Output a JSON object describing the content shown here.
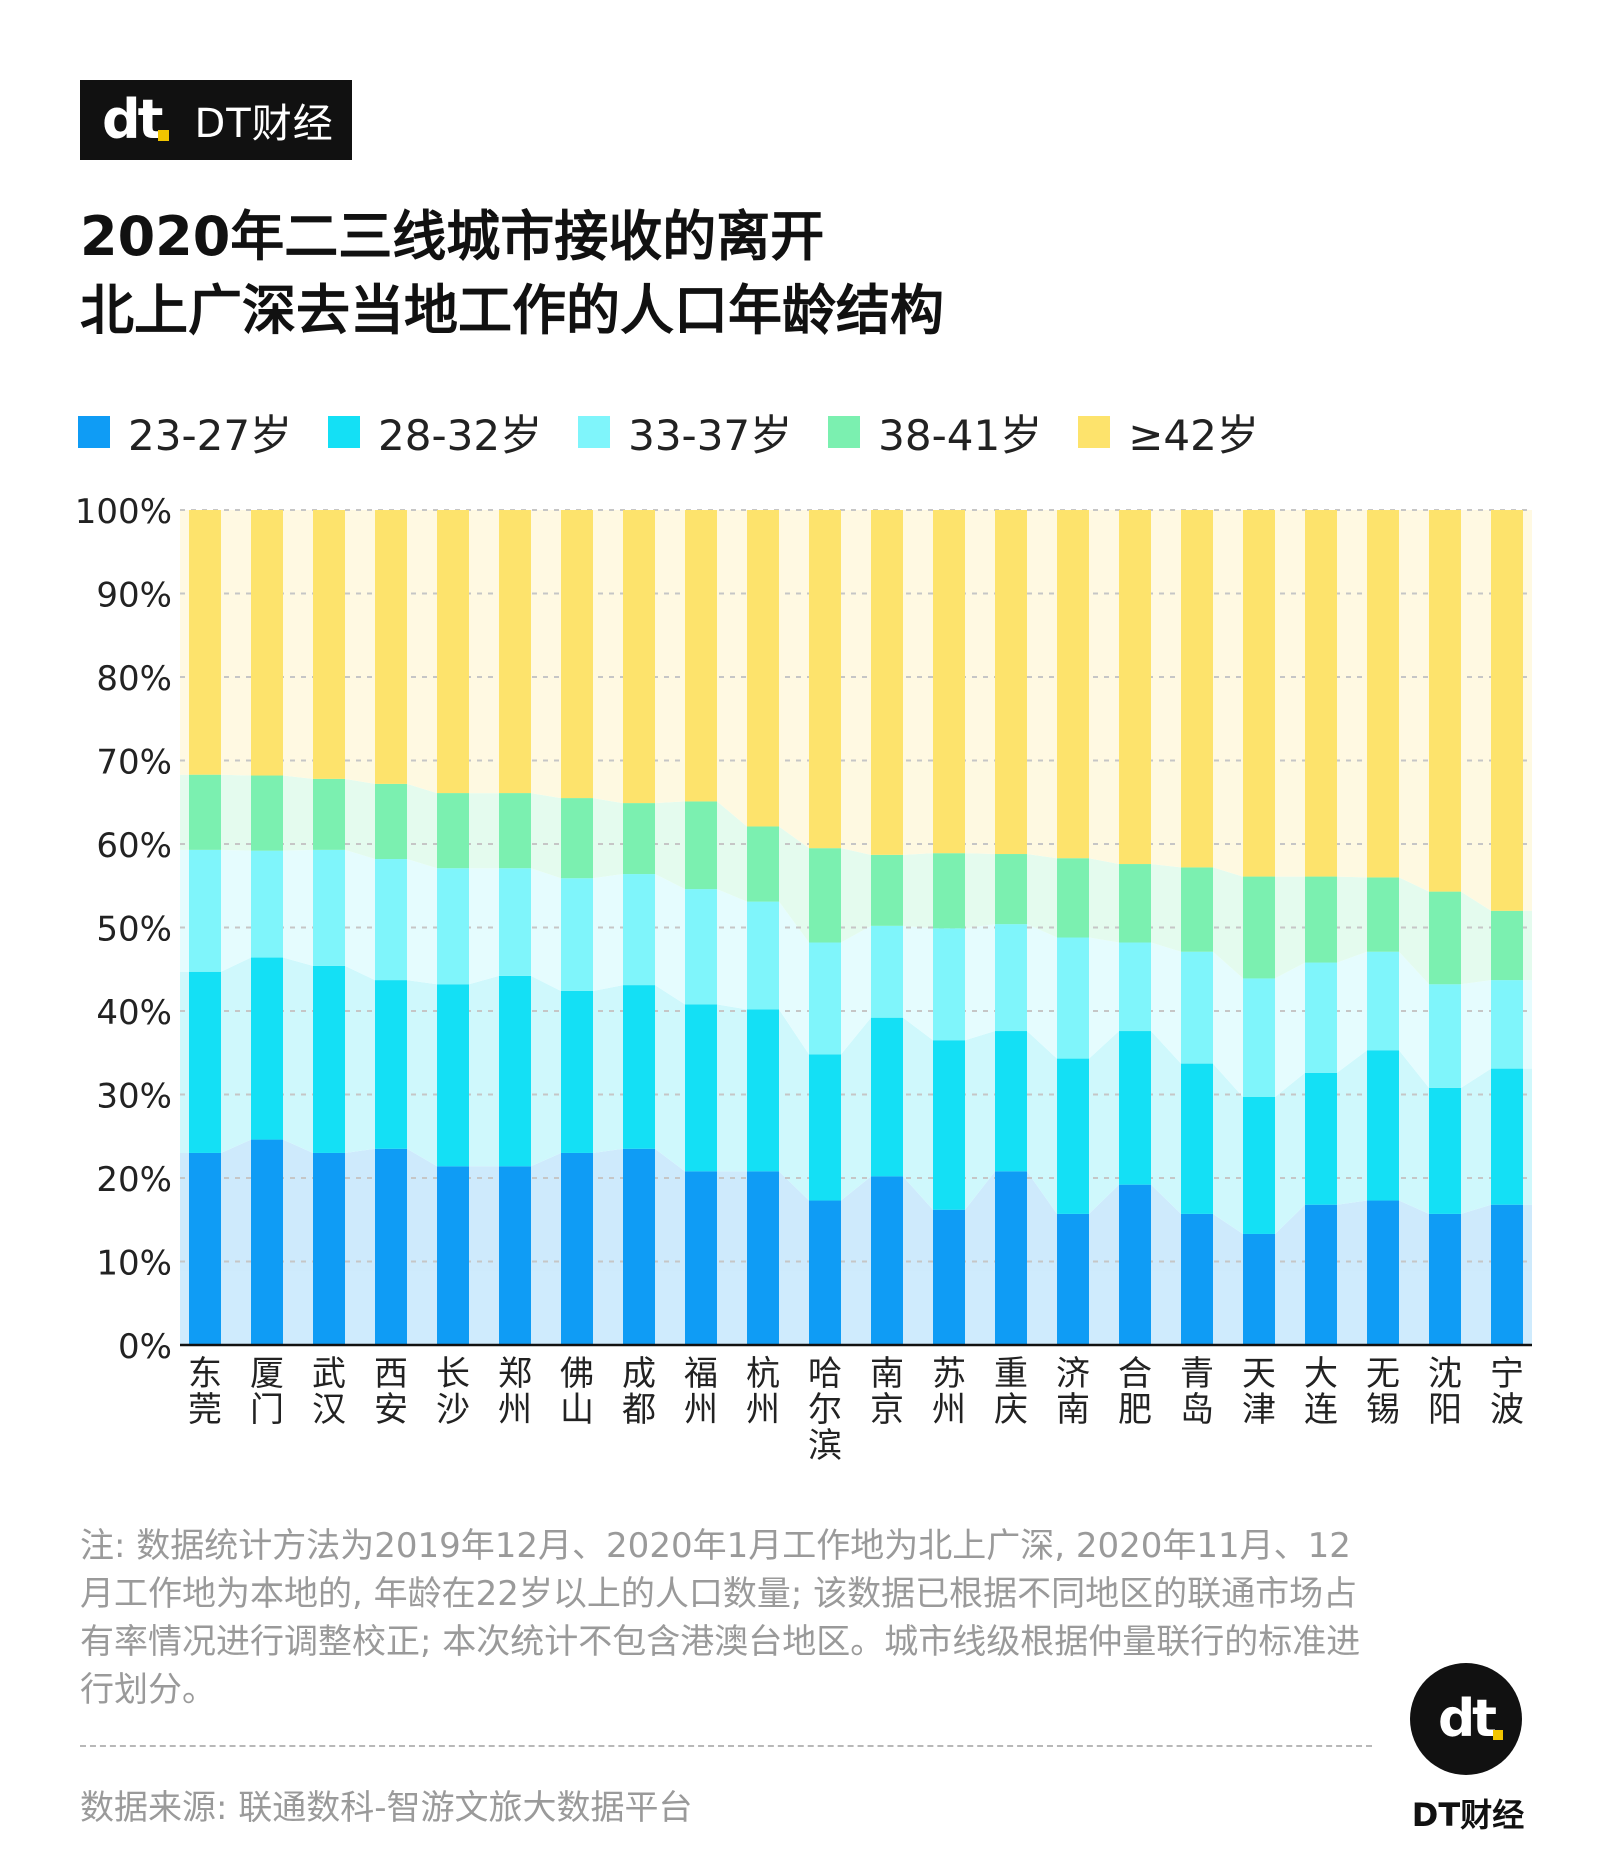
{
  "brand": {
    "logo_text": "dt",
    "name": "DT财经"
  },
  "title": {
    "line1": "2020年二三线城市接收的离开",
    "line2": "北上广深去当地工作的人口年龄结构"
  },
  "colors": {
    "23-27": "#0f9cf5",
    "28-32": "#14e0f5",
    "33-37": "#7ff5fb",
    "38-41": "#7bf0b0",
    "42plus": "#fde36c"
  },
  "chart_data": {
    "type": "bar",
    "stacked": true,
    "y_axis": {
      "range": [
        0,
        100
      ],
      "ticks": [
        "0%",
        "10%",
        "20%",
        "30%",
        "40%",
        "50%",
        "60%",
        "70%",
        "80%",
        "90%",
        "100%"
      ]
    },
    "grid": "dashed horizontal",
    "legend_position": "top",
    "categories": [
      "东莞",
      "厦门",
      "武汉",
      "西安",
      "长沙",
      "郑州",
      "佛山",
      "成都",
      "福州",
      "杭州",
      "哈尔滨",
      "南京",
      "苏州",
      "重庆",
      "济南",
      "合肥",
      "青岛",
      "天津",
      "大连",
      "无锡",
      "沈阳",
      "宁波"
    ],
    "series": [
      {
        "name": "23-27岁",
        "color_key": "23-27",
        "values": [
          23.0,
          24.6,
          23.0,
          23.5,
          21.4,
          21.4,
          23.0,
          23.5,
          20.8,
          20.8,
          17.3,
          20.2,
          16.2,
          20.8,
          15.7,
          19.2,
          15.7,
          13.3,
          16.8,
          17.3,
          15.7,
          16.8
        ]
      },
      {
        "name": "28-32岁",
        "color_key": "28-32",
        "values": [
          21.7,
          21.8,
          22.4,
          20.2,
          21.8,
          22.8,
          19.4,
          19.6,
          20.0,
          19.4,
          17.5,
          19.0,
          20.3,
          16.8,
          18.6,
          18.4,
          18.0,
          16.4,
          15.8,
          18.0,
          15.1,
          16.3
        ]
      },
      {
        "name": "33-37岁",
        "color_key": "33-37",
        "values": [
          14.6,
          12.8,
          13.9,
          14.5,
          13.9,
          12.9,
          13.5,
          13.3,
          13.8,
          12.9,
          13.4,
          11.0,
          13.4,
          12.8,
          14.5,
          10.6,
          13.4,
          14.2,
          13.2,
          11.8,
          12.4,
          10.6
        ]
      },
      {
        "name": "38-41岁",
        "color_key": "38-41",
        "values": [
          9.0,
          9.0,
          8.5,
          9.0,
          9.0,
          9.0,
          9.6,
          8.5,
          10.5,
          9.0,
          11.3,
          8.5,
          9.0,
          8.4,
          9.5,
          9.4,
          10.1,
          12.2,
          10.3,
          8.9,
          11.1,
          8.3
        ]
      },
      {
        "name": "≥42岁",
        "color_key": "42plus",
        "values": [
          31.7,
          31.8,
          32.2,
          32.8,
          33.9,
          33.9,
          34.5,
          35.1,
          34.9,
          37.9,
          40.5,
          41.3,
          41.1,
          41.2,
          41.7,
          42.4,
          42.8,
          43.9,
          43.9,
          44.0,
          45.7,
          48.0
        ]
      }
    ]
  },
  "footnote": "注: 数据统计方法为2019年12月、2020年1月工作地为北上广深, 2020年11月、12月工作地为本地的, 年龄在22岁以上的人口数量; 该数据已根据不同地区的联通市场占有率情况进行调整校正; 本次统计不包含港澳台地区。城市线级根据仲量联行的标准进行划分。",
  "source": "数据来源: 联通数科-智游文旅大数据平台"
}
